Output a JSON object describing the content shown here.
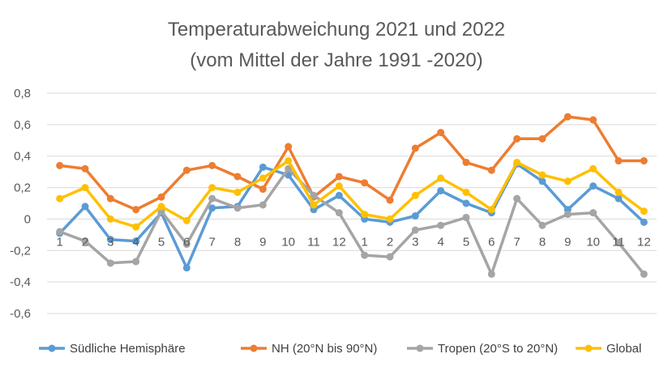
{
  "chart_data": {
    "type": "line",
    "title": [
      "Temperaturabweichung  2021 und 2022",
      "(vom Mittel der Jahre 1991 -2020)"
    ],
    "categories": [
      "1",
      "2",
      "3",
      "4",
      "5",
      "6",
      "7",
      "8",
      "9",
      "10",
      "11",
      "12",
      "1",
      "2",
      "3",
      "4",
      "5",
      "6",
      "7",
      "8",
      "9",
      "10",
      "11",
      "12"
    ],
    "yticks": [
      "0,8",
      "0,6",
      "0,4",
      "0,2",
      "0",
      "-0,2",
      "-0,4",
      "-0,6"
    ],
    "ylim": [
      -0.6,
      0.8
    ],
    "grid": true,
    "legend_position": "bottom",
    "series": [
      {
        "name": "Südliche Hemisphäre",
        "color": "#5b9bd5",
        "values": [
          -0.09,
          0.08,
          -0.13,
          -0.14,
          0.04,
          -0.31,
          0.07,
          0.08,
          0.33,
          0.28,
          0.06,
          0.15,
          0.0,
          -0.02,
          0.02,
          0.18,
          0.1,
          0.04,
          0.35,
          0.24,
          0.06,
          0.21,
          0.13,
          -0.02
        ]
      },
      {
        "name": "NH (20°N bis 90°N)",
        "color": "#ed7d31",
        "values": [
          0.34,
          0.32,
          0.13,
          0.06,
          0.14,
          0.31,
          0.34,
          0.27,
          0.19,
          0.46,
          0.14,
          0.27,
          0.23,
          0.12,
          0.45,
          0.55,
          0.36,
          0.31,
          0.51,
          0.51,
          0.65,
          0.63,
          0.37,
          0.37
        ]
      },
      {
        "name": "Tropen (20°S to 20°N)",
        "color": "#a5a5a5",
        "values": [
          -0.08,
          -0.14,
          -0.28,
          -0.27,
          0.05,
          -0.16,
          0.13,
          0.07,
          0.09,
          0.32,
          0.15,
          0.04,
          -0.23,
          -0.24,
          -0.07,
          -0.04,
          0.01,
          -0.35,
          0.13,
          -0.04,
          0.03,
          0.04,
          -0.15,
          -0.35
        ]
      },
      {
        "name": "Global",
        "color": "#ffc000",
        "values": [
          0.13,
          0.2,
          0.0,
          -0.05,
          0.08,
          -0.01,
          0.2,
          0.17,
          0.26,
          0.37,
          0.09,
          0.21,
          0.03,
          0.0,
          0.15,
          0.26,
          0.17,
          0.06,
          0.36,
          0.28,
          0.24,
          0.32,
          0.17,
          0.05
        ]
      }
    ]
  }
}
